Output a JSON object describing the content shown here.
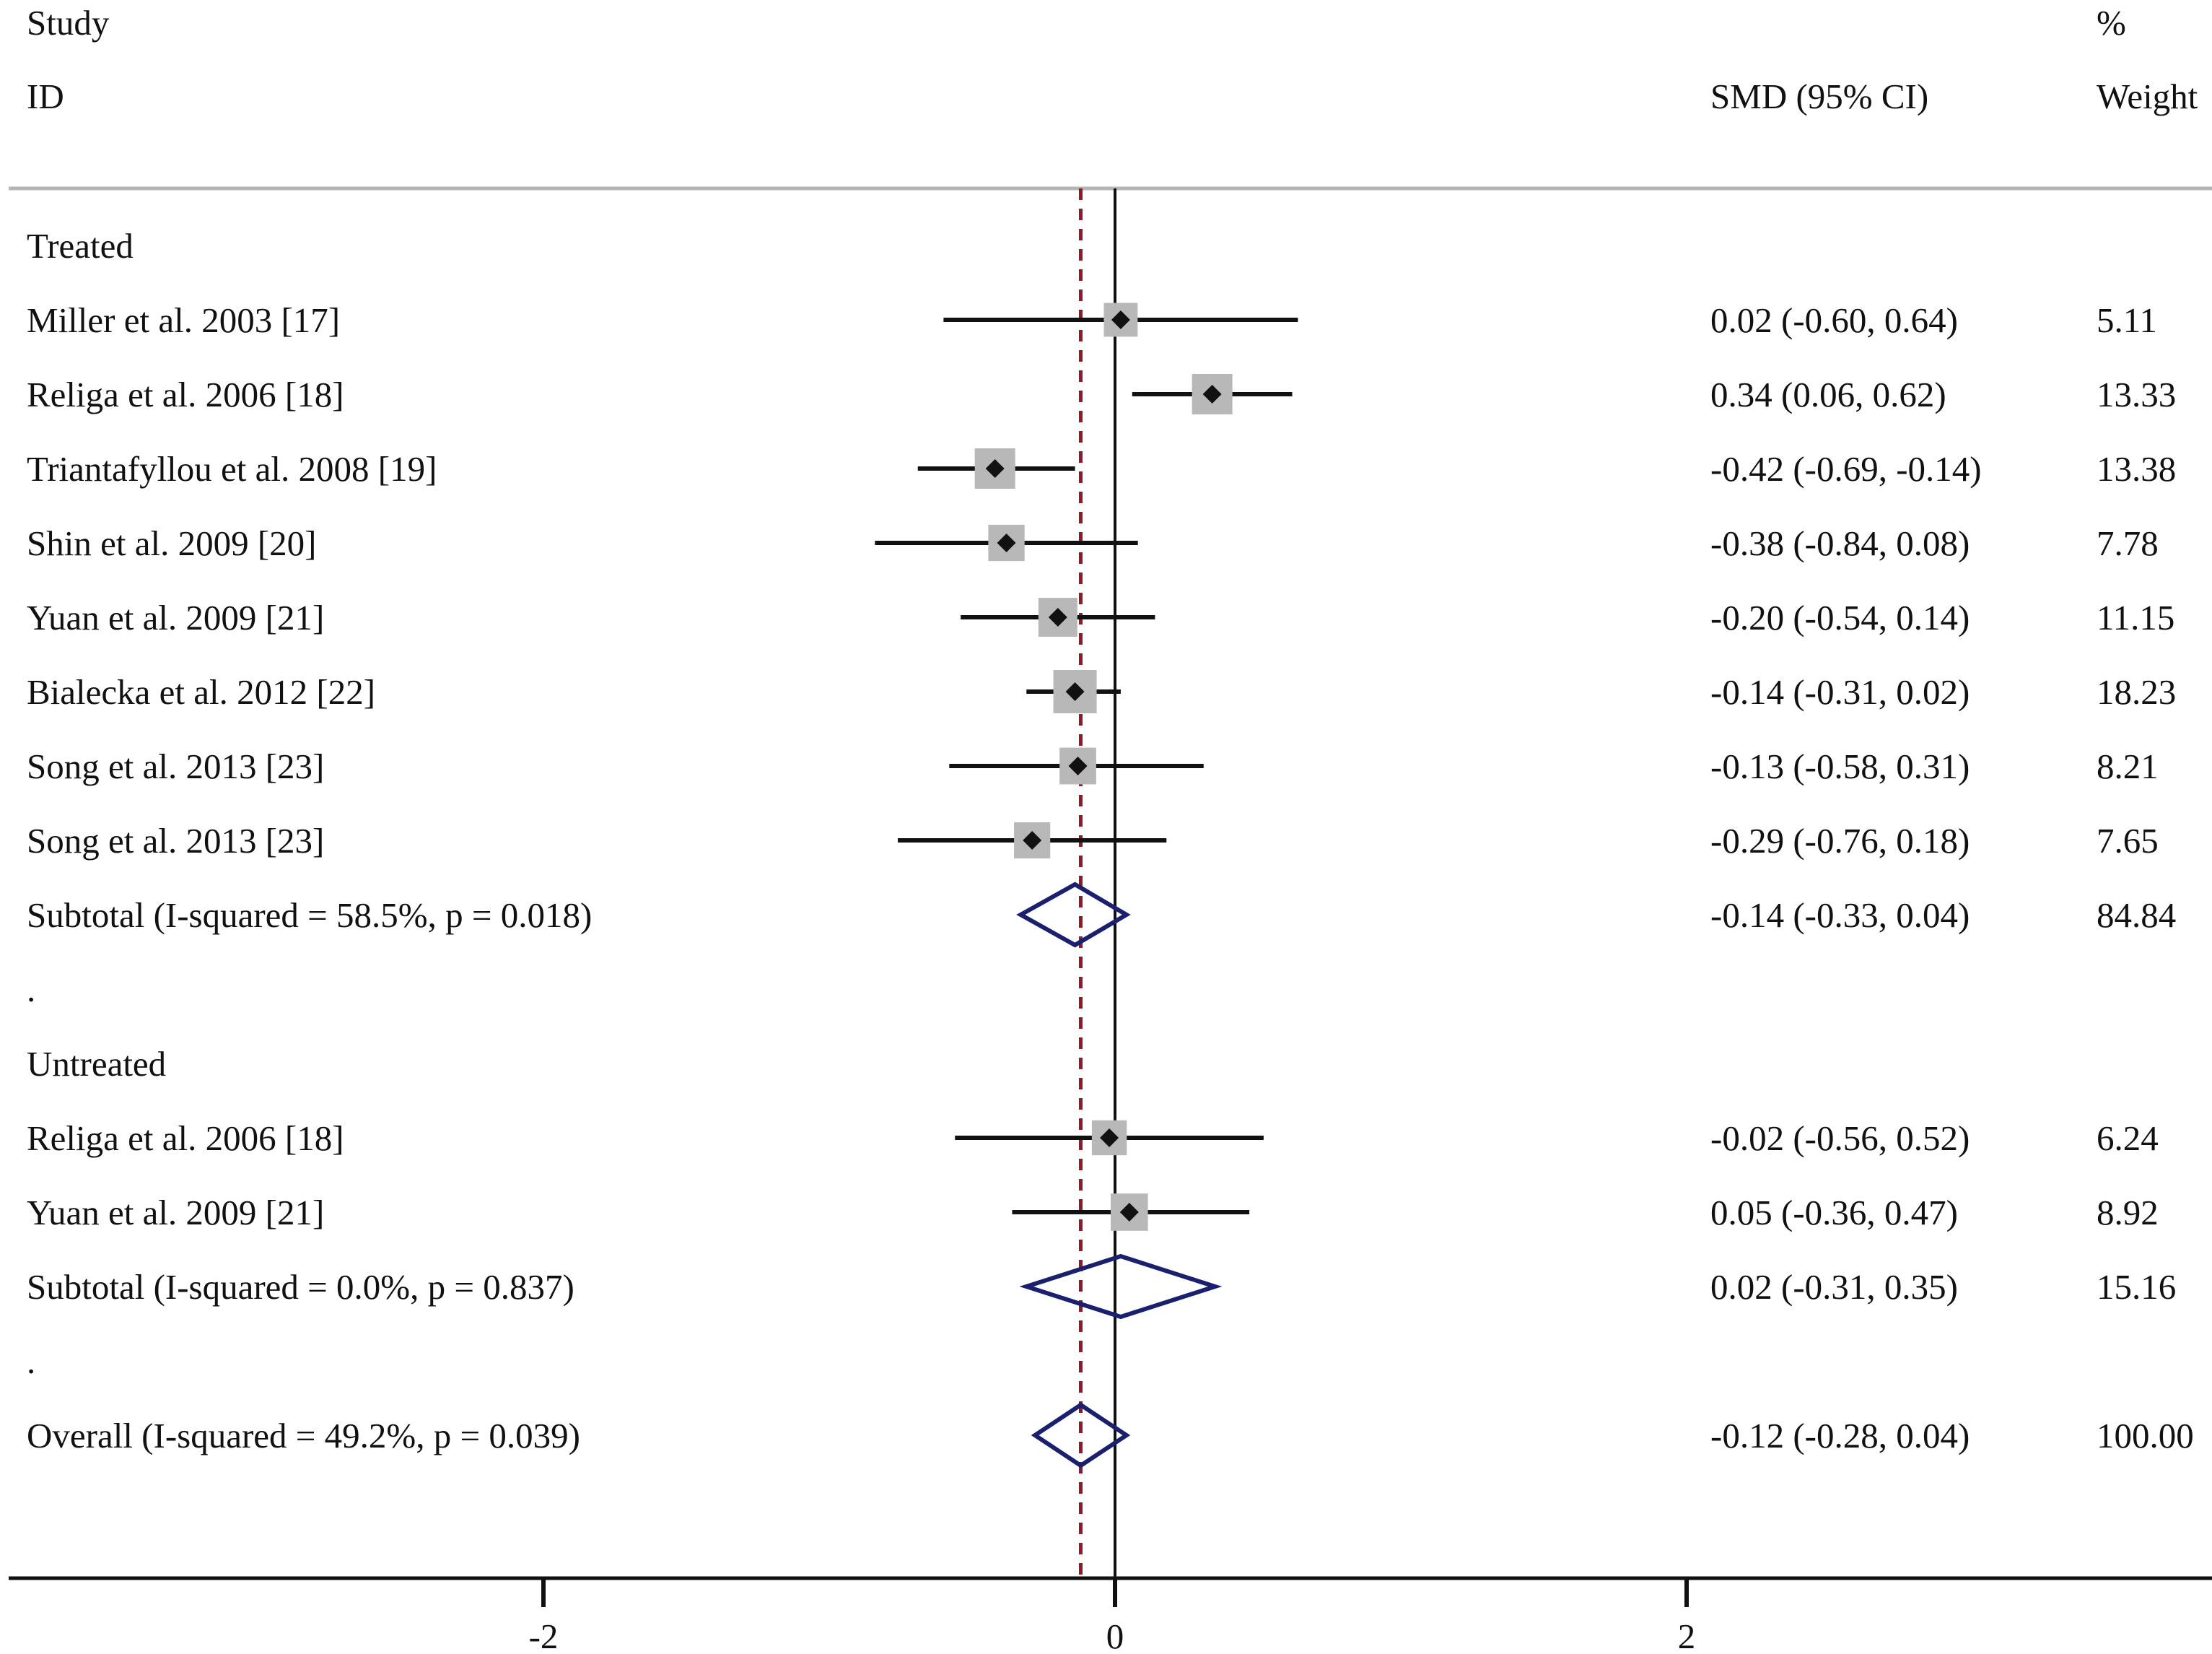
{
  "header": {
    "study_line1": "Study",
    "study_line2": "ID",
    "effect_label": "SMD (95% CI)",
    "weight_line1": "%",
    "weight_line2": "Weight"
  },
  "colors": {
    "box": "#b8b8b8",
    "point": "#111111",
    "diamond": "#1a1f6e",
    "ref_line": "#8b1a2b",
    "axis": "#111111",
    "header_rule": "#b5b5b5"
  },
  "chart_data": {
    "type": "forest",
    "measure": "SMD",
    "xlim": [
      -3.9,
      3.8
    ],
    "xticks": [
      -2,
      0,
      2
    ],
    "tick_labels": [
      "-2",
      "0",
      "2"
    ],
    "null_line": 0,
    "overall_line": -0.12,
    "rows": [
      {
        "kind": "group",
        "label": "Treated"
      },
      {
        "kind": "study",
        "label": "Miller et al. 2003 [17]",
        "est": 0.02,
        "lo": -0.6,
        "hi": 0.64,
        "ci_text": "0.02 (-0.60, 0.64)",
        "weight": "5.11"
      },
      {
        "kind": "study",
        "label": "Religa et al. 2006 [18]",
        "est": 0.34,
        "lo": 0.06,
        "hi": 0.62,
        "ci_text": "0.34 (0.06, 0.62)",
        "weight": "13.33"
      },
      {
        "kind": "study",
        "label": "Triantafyllou et al. 2008 [19]",
        "est": -0.42,
        "lo": -0.69,
        "hi": -0.14,
        "ci_text": "-0.42 (-0.69, -0.14)",
        "weight": "13.38"
      },
      {
        "kind": "study",
        "label": "Shin et al. 2009 [20]",
        "est": -0.38,
        "lo": -0.84,
        "hi": 0.08,
        "ci_text": "-0.38 (-0.84, 0.08)",
        "weight": "7.78"
      },
      {
        "kind": "study",
        "label": "Yuan et al. 2009 [21]",
        "est": -0.2,
        "lo": -0.54,
        "hi": 0.14,
        "ci_text": "-0.20 (-0.54, 0.14)",
        "weight": "11.15"
      },
      {
        "kind": "study",
        "label": "Bialecka et al. 2012 [22]",
        "est": -0.14,
        "lo": -0.31,
        "hi": 0.02,
        "ci_text": "-0.14 (-0.31, 0.02)",
        "weight": "18.23"
      },
      {
        "kind": "study",
        "label": "Song et al. 2013 [23]",
        "est": -0.13,
        "lo": -0.58,
        "hi": 0.31,
        "ci_text": "-0.13 (-0.58, 0.31)",
        "weight": "8.21"
      },
      {
        "kind": "study",
        "label": "Song et al. 2013 [23]",
        "est": -0.29,
        "lo": -0.76,
        "hi": 0.18,
        "ci_text": "-0.29 (-0.76, 0.18)",
        "weight": "7.65"
      },
      {
        "kind": "subtotal",
        "label": "Subtotal  (I-squared = 58.5%, p = 0.018)",
        "est": -0.14,
        "lo": -0.33,
        "hi": 0.04,
        "ci_text": "-0.14 (-0.33, 0.04)",
        "weight": "84.84"
      },
      {
        "kind": "spacer",
        "label": "."
      },
      {
        "kind": "group",
        "label": "Untreated"
      },
      {
        "kind": "study",
        "label": "Religa et al. 2006 [18]",
        "est": -0.02,
        "lo": -0.56,
        "hi": 0.52,
        "ci_text": "-0.02 (-0.56, 0.52)",
        "weight": "6.24"
      },
      {
        "kind": "study",
        "label": "Yuan et al. 2009 [21]",
        "est": 0.05,
        "lo": -0.36,
        "hi": 0.47,
        "ci_text": "0.05 (-0.36, 0.47)",
        "weight": "8.92"
      },
      {
        "kind": "subtotal",
        "label": "Subtotal  (I-squared = 0.0%, p = 0.837)",
        "est": 0.02,
        "lo": -0.31,
        "hi": 0.35,
        "ci_text": "0.02 (-0.31, 0.35)",
        "weight": "15.16"
      },
      {
        "kind": "spacer",
        "label": "."
      },
      {
        "kind": "overall",
        "label": "Overall  (I-squared = 49.2%, p = 0.039)",
        "est": -0.12,
        "lo": -0.28,
        "hi": 0.04,
        "ci_text": "-0.12 (-0.28, 0.04)",
        "weight": "100.00"
      }
    ]
  }
}
